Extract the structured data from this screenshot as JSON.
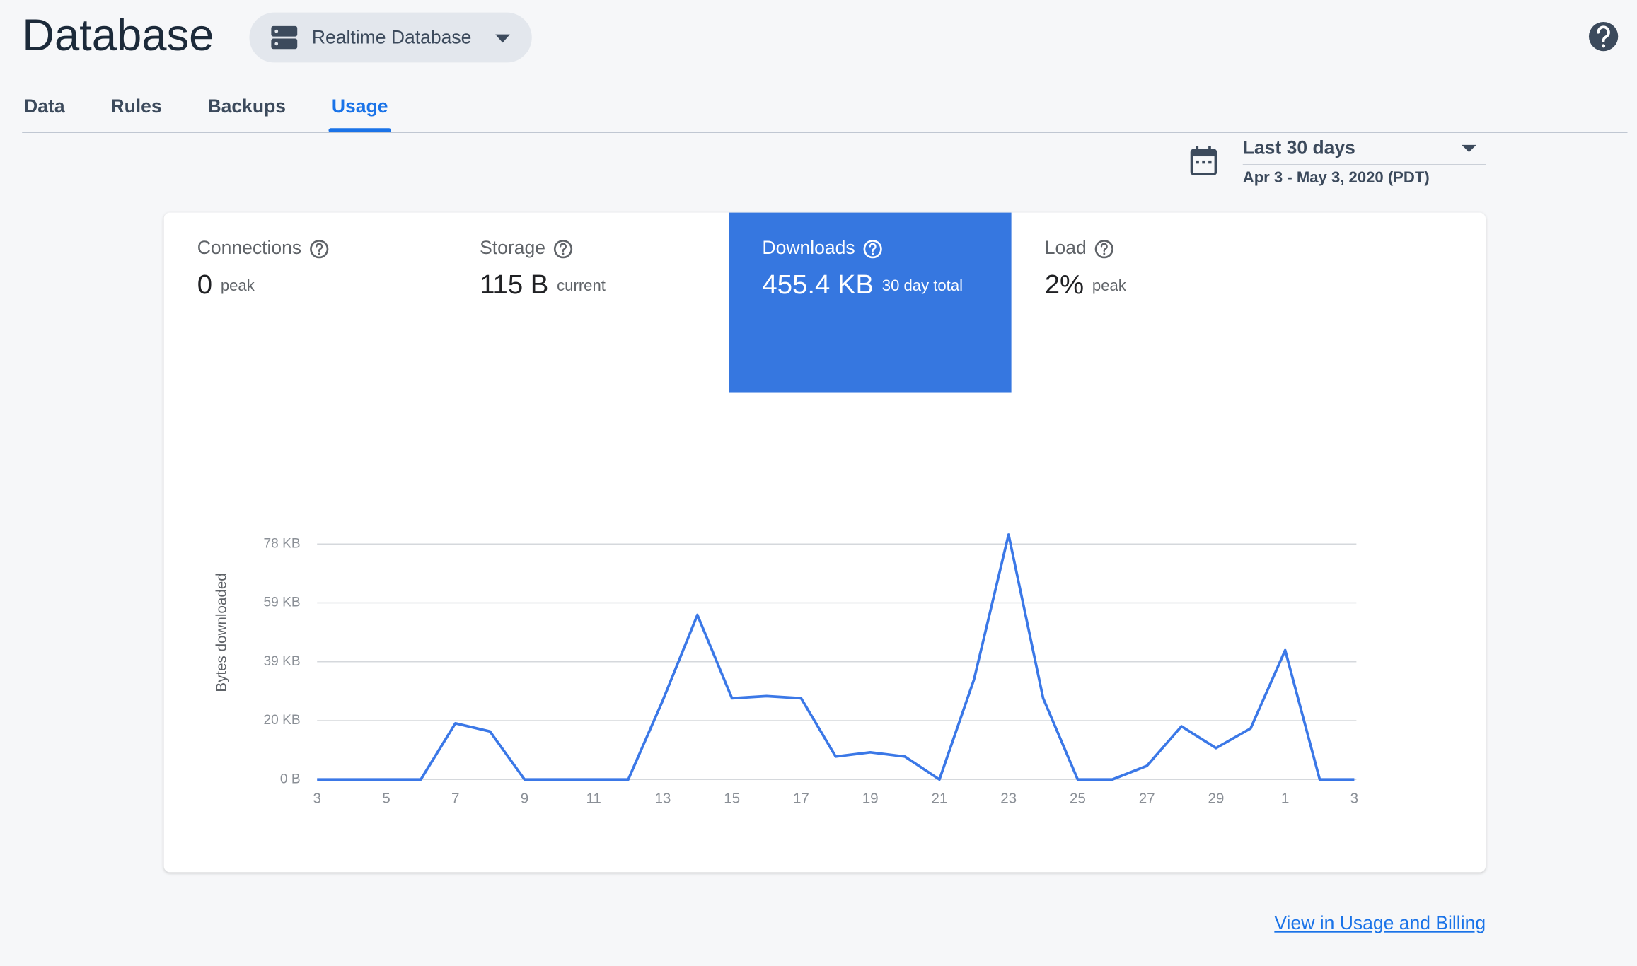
{
  "header": {
    "title": "Database",
    "db_selector": "Realtime Database"
  },
  "tabs": [
    {
      "label": "Data"
    },
    {
      "label": "Rules"
    },
    {
      "label": "Backups"
    },
    {
      "label": "Usage",
      "active": true
    }
  ],
  "date_range": {
    "label": "Last 30 days",
    "range": "Apr 3 - May 3, 2020 (PDT)"
  },
  "metrics": [
    {
      "name": "Connections",
      "value": "0",
      "unit": "peak"
    },
    {
      "name": "Storage",
      "value": "115 B",
      "unit": "current"
    },
    {
      "name": "Downloads",
      "value": "455.4 KB",
      "unit": "30 day total",
      "selected": true
    },
    {
      "name": "Load",
      "value": "2%",
      "unit": "peak"
    }
  ],
  "chart_data": {
    "type": "line",
    "y_label": "Bytes downloaded",
    "color": "#3b78e7",
    "categories": [
      "3",
      null,
      "5",
      null,
      "7",
      null,
      "9",
      null,
      "11",
      null,
      "13",
      null,
      "15",
      null,
      "17",
      null,
      "19",
      null,
      "21",
      null,
      "23",
      null,
      "25",
      null,
      "27",
      null,
      "29",
      null,
      "1",
      null,
      "3"
    ],
    "values": [
      0,
      0,
      0,
      0,
      18.6,
      15.9,
      0,
      0,
      0,
      0,
      26.2,
      54.5,
      26.9,
      27.6,
      26.9,
      7.6,
      9.0,
      7.6,
      0,
      33.1,
      81.1,
      26.9,
      0,
      0,
      4.5,
      17.6,
      10.4,
      16.9,
      42.8,
      0,
      0
    ],
    "ylim": [
      0,
      78
    ],
    "yticks": [
      {
        "value": 0,
        "label": "0 B"
      },
      {
        "value": 19.5,
        "label": "20 KB"
      },
      {
        "value": 39,
        "label": "39 KB"
      },
      {
        "value": 58.5,
        "label": "59 KB"
      },
      {
        "value": 78,
        "label": "78 KB"
      }
    ],
    "grid": true
  },
  "footer": {
    "link": "View in Usage and Billing"
  }
}
